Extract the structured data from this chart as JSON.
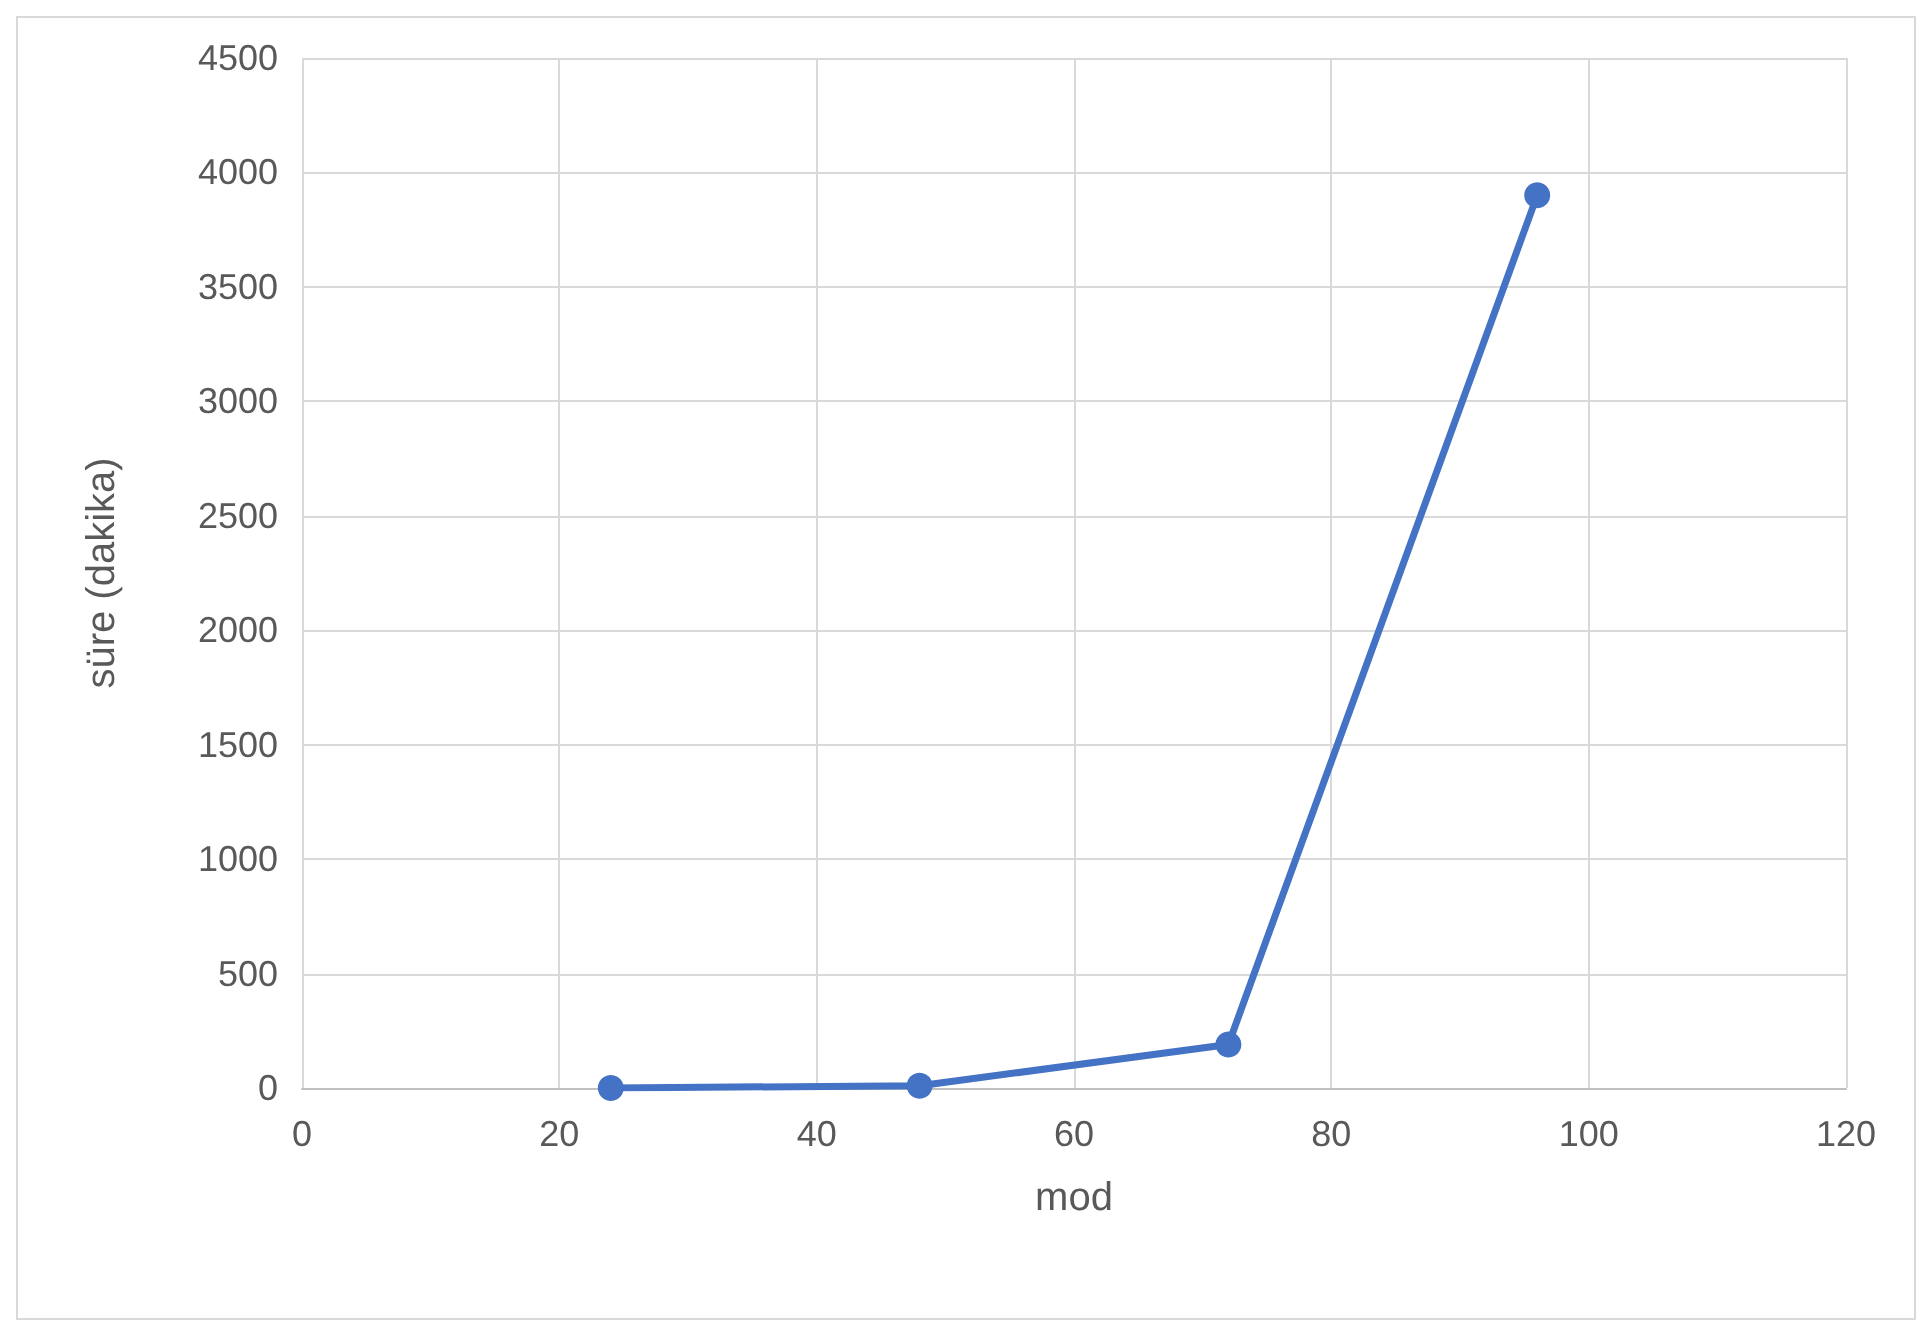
{
  "chart_data": {
    "type": "line",
    "xlabel": "mod",
    "ylabel": "süre (dakika)",
    "x": [
      24,
      48,
      72,
      96
    ],
    "series": [
      {
        "color": "#4472c4",
        "values": [
          0,
          10,
          190,
          3900
        ]
      }
    ],
    "xlim": [
      0,
      120
    ],
    "xticks": [
      0,
      20,
      40,
      60,
      80,
      100,
      120
    ],
    "ylim": [
      0,
      4500
    ],
    "yticks": [
      0,
      500,
      1000,
      1500,
      2000,
      2500,
      3000,
      3500,
      4000,
      4500
    ],
    "grid": true,
    "marker": "circle",
    "line_style": "solid"
  }
}
